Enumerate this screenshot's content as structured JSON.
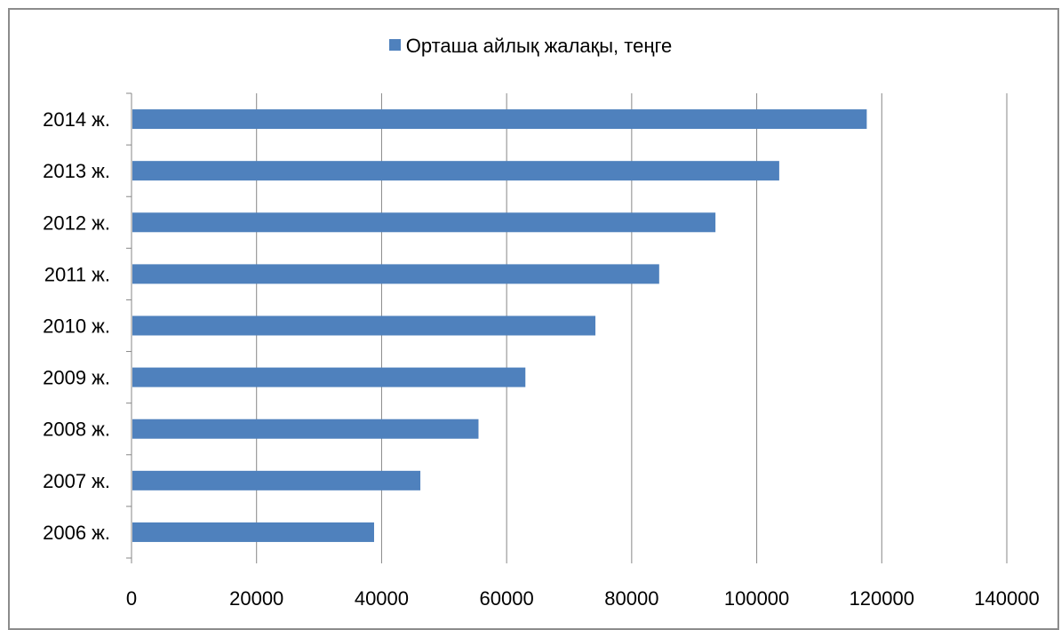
{
  "chart_data": {
    "type": "bar",
    "orientation": "horizontal",
    "categories": [
      "2014 ж.",
      "2013 ж.",
      "2012 ж.",
      "2011 ж.",
      "2010 ж.",
      "2009 ж.",
      "2008 ж.",
      "2007 ж.",
      "2006 ж."
    ],
    "series": [
      {
        "name": "Орташа айлық жалақы, теңге",
        "values": [
          117600,
          103600,
          93400,
          84400,
          74200,
          63000,
          55500,
          46200,
          38800
        ],
        "color": "#4f81bd"
      }
    ],
    "xlim": [
      0,
      140000
    ],
    "xticks": [
      "0",
      "20000",
      "40000",
      "60000",
      "80000",
      "100000",
      "120000",
      "140000"
    ],
    "grid": "vertical major gridlines",
    "legend_position": "top"
  }
}
